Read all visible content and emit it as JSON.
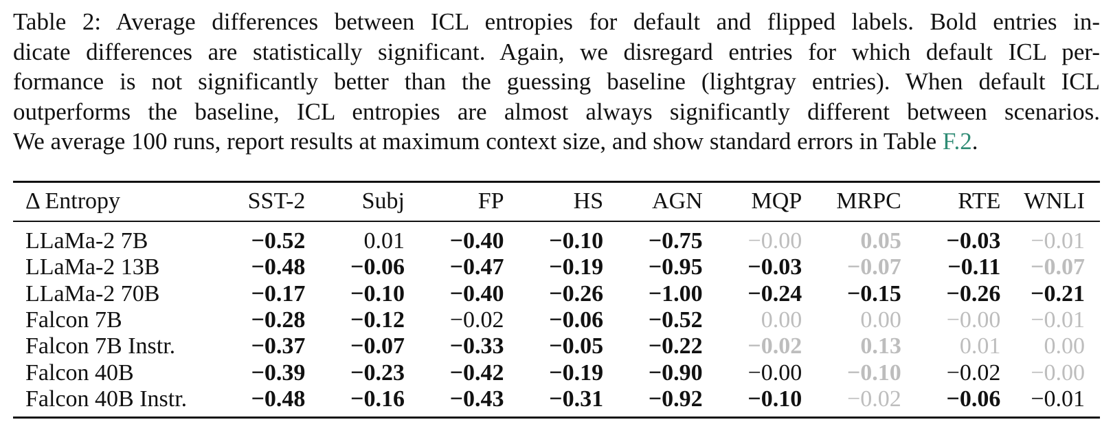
{
  "caption": {
    "lines": [
      "Table 2: Average differences between ICL entropies for default and flipped labels. Bold entries in-",
      "dicate differences are statistically significant. Again, we disregard entries for which default ICL per-",
      "formance is not significantly better than the guessing baseline (lightgray entries). When default ICL",
      "outperforms the baseline, ICL entropies are almost always significantly different between scenarios."
    ],
    "last_line_prefix": "We average 100 runs, report results at maximum context size, and show standard errors in Table ",
    "ref_link": "F.2",
    "last_line_suffix": "."
  },
  "table": {
    "header": {
      "model": "Δ Entropy",
      "columns": [
        "SST-2",
        "Subj",
        "FP",
        "HS",
        "AGN",
        "MQP",
        "MRPC",
        "RTE",
        "WNLI"
      ]
    },
    "rows": [
      {
        "model": "LLaMa-2 7B",
        "cells": [
          {
            "v": "−0.52",
            "s": "bold"
          },
          {
            "v": "0.01",
            "s": "normal"
          },
          {
            "v": "−0.40",
            "s": "bold"
          },
          {
            "v": "−0.10",
            "s": "bold"
          },
          {
            "v": "−0.75",
            "s": "bold"
          },
          {
            "v": "−0.00",
            "s": "gray"
          },
          {
            "v": "0.05",
            "s": "gray-bold"
          },
          {
            "v": "−0.03",
            "s": "bold"
          },
          {
            "v": "−0.01",
            "s": "gray"
          }
        ]
      },
      {
        "model": "LLaMa-2 13B",
        "cells": [
          {
            "v": "−0.48",
            "s": "bold"
          },
          {
            "v": "−0.06",
            "s": "bold"
          },
          {
            "v": "−0.47",
            "s": "bold"
          },
          {
            "v": "−0.19",
            "s": "bold"
          },
          {
            "v": "−0.95",
            "s": "bold"
          },
          {
            "v": "−0.03",
            "s": "bold"
          },
          {
            "v": "−0.07",
            "s": "gray-bold"
          },
          {
            "v": "−0.11",
            "s": "bold"
          },
          {
            "v": "−0.07",
            "s": "gray-bold"
          }
        ]
      },
      {
        "model": "LLaMa-2 70B",
        "cells": [
          {
            "v": "−0.17",
            "s": "bold"
          },
          {
            "v": "−0.10",
            "s": "bold"
          },
          {
            "v": "−0.40",
            "s": "bold"
          },
          {
            "v": "−0.26",
            "s": "bold"
          },
          {
            "v": "−1.00",
            "s": "bold"
          },
          {
            "v": "−0.24",
            "s": "bold"
          },
          {
            "v": "−0.15",
            "s": "bold"
          },
          {
            "v": "−0.26",
            "s": "bold"
          },
          {
            "v": "−0.21",
            "s": "bold"
          }
        ]
      },
      {
        "model": "Falcon 7B",
        "cells": [
          {
            "v": "−0.28",
            "s": "bold"
          },
          {
            "v": "−0.12",
            "s": "bold"
          },
          {
            "v": "−0.02",
            "s": "normal"
          },
          {
            "v": "−0.06",
            "s": "bold"
          },
          {
            "v": "−0.52",
            "s": "bold"
          },
          {
            "v": "0.00",
            "s": "gray"
          },
          {
            "v": "0.00",
            "s": "gray"
          },
          {
            "v": "−0.00",
            "s": "gray"
          },
          {
            "v": "−0.01",
            "s": "gray"
          }
        ]
      },
      {
        "model": "Falcon 7B Instr.",
        "cells": [
          {
            "v": "−0.37",
            "s": "bold"
          },
          {
            "v": "−0.07",
            "s": "bold"
          },
          {
            "v": "−0.33",
            "s": "bold"
          },
          {
            "v": "−0.05",
            "s": "bold"
          },
          {
            "v": "−0.22",
            "s": "bold"
          },
          {
            "v": "−0.02",
            "s": "gray-bold"
          },
          {
            "v": "0.13",
            "s": "gray-bold"
          },
          {
            "v": "0.01",
            "s": "gray"
          },
          {
            "v": "0.00",
            "s": "gray"
          }
        ]
      },
      {
        "model": "Falcon 40B",
        "cells": [
          {
            "v": "−0.39",
            "s": "bold"
          },
          {
            "v": "−0.23",
            "s": "bold"
          },
          {
            "v": "−0.42",
            "s": "bold"
          },
          {
            "v": "−0.19",
            "s": "bold"
          },
          {
            "v": "−0.90",
            "s": "bold"
          },
          {
            "v": "−0.00",
            "s": "normal"
          },
          {
            "v": "−0.10",
            "s": "gray-bold"
          },
          {
            "v": "−0.02",
            "s": "normal"
          },
          {
            "v": "−0.00",
            "s": "gray"
          }
        ]
      },
      {
        "model": "Falcon 40B Instr.",
        "cells": [
          {
            "v": "−0.48",
            "s": "bold"
          },
          {
            "v": "−0.16",
            "s": "bold"
          },
          {
            "v": "−0.43",
            "s": "bold"
          },
          {
            "v": "−0.31",
            "s": "bold"
          },
          {
            "v": "−0.92",
            "s": "bold"
          },
          {
            "v": "−0.10",
            "s": "bold"
          },
          {
            "v": "−0.02",
            "s": "gray"
          },
          {
            "v": "−0.06",
            "s": "bold"
          },
          {
            "v": "−0.01",
            "s": "normal"
          }
        ]
      }
    ]
  },
  "colors": {
    "text": "#111111",
    "link": "#2e8b74",
    "lightgray": "#bdbdbd"
  }
}
